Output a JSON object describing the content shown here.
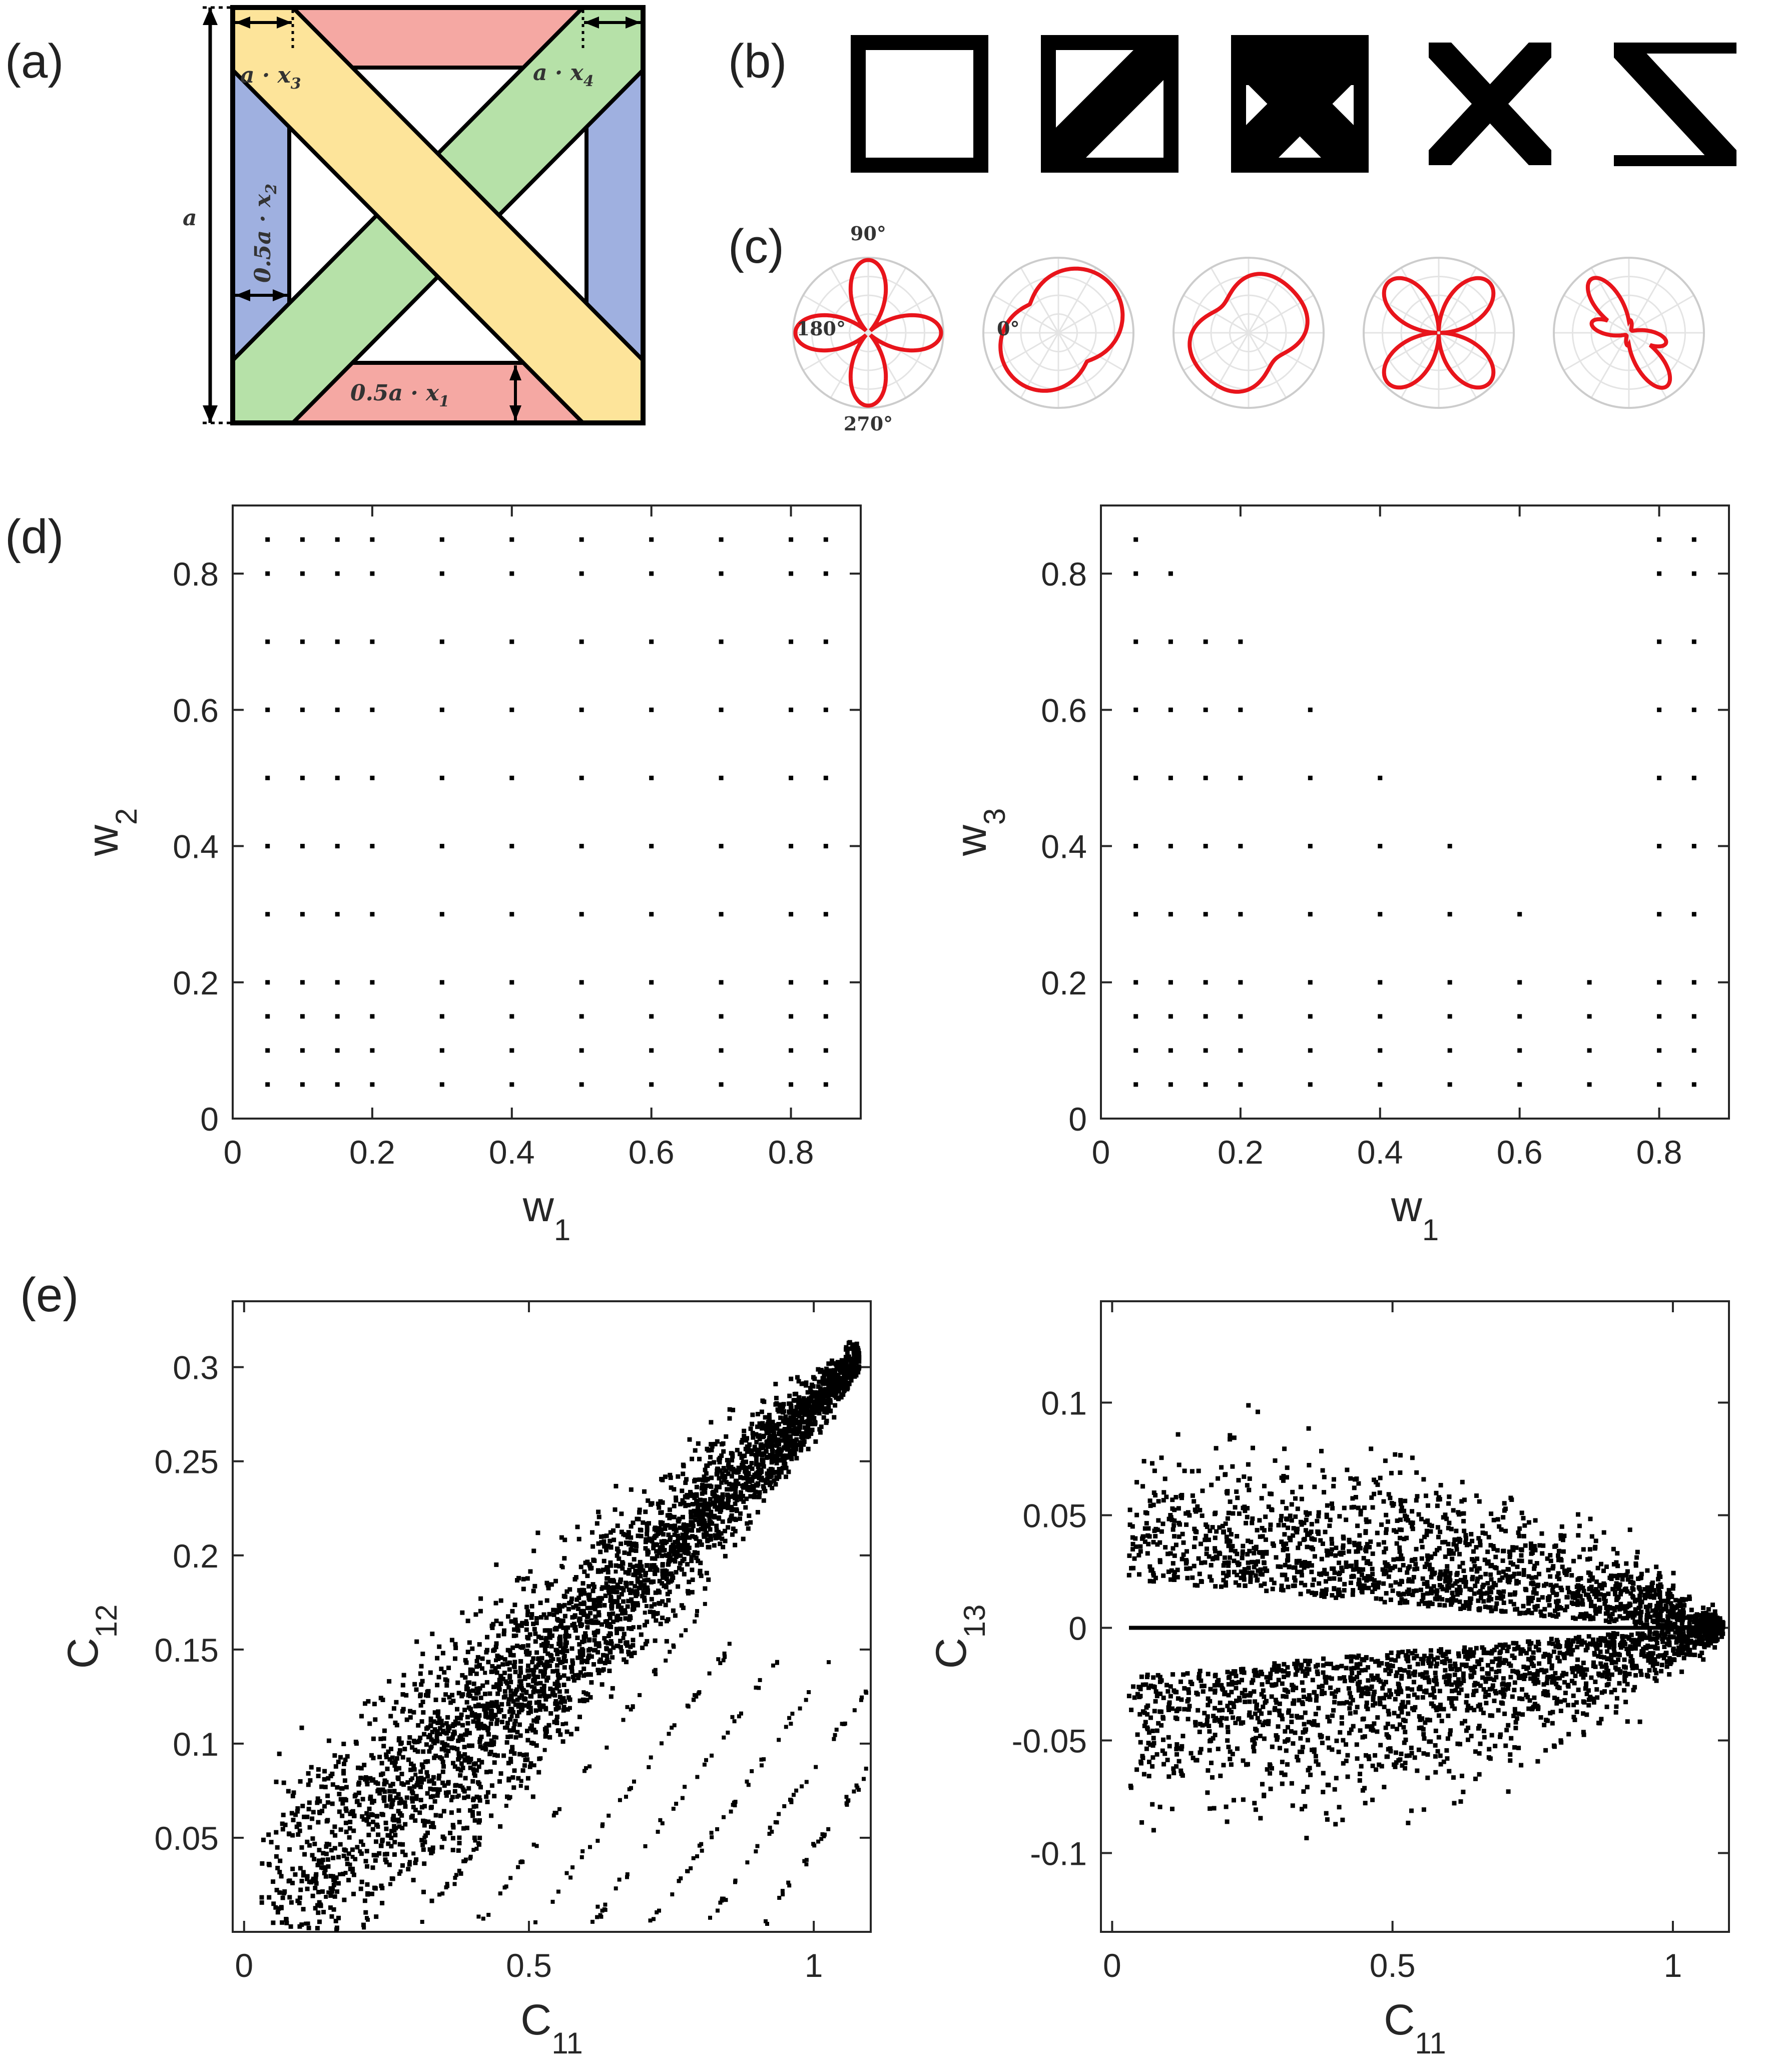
{
  "panel_labels": {
    "a": "(a)",
    "b": "(b)",
    "c": "(c)",
    "d": "(d)",
    "e": "(e)"
  },
  "cell": {
    "label_a": "a",
    "label_x1": "0.5a · x",
    "label_x2": "0.5a · x",
    "label_x3": "a · x",
    "label_x4": "a · x",
    "sub_x1": "1",
    "sub_x2": "2",
    "sub_x3": "3",
    "sub_x4": "4",
    "colors": {
      "red": "#f5a8a3",
      "blue": "#9fb0e0",
      "green": "#b6e1a8",
      "yellow": "#fde49a"
    }
  },
  "polar": {
    "angle_labels": {
      "deg90": "90°",
      "deg180": "180°",
      "deg0": "0°",
      "deg270": "270°"
    },
    "curve_color": "#e8141b"
  },
  "chart_data": [
    {
      "id": "d-left",
      "type": "scatter",
      "xlabel": "w",
      "xlabel_sub": "1",
      "ylabel": "w",
      "ylabel_sub": "2",
      "xlim": [
        0,
        0.9
      ],
      "ylim": [
        0,
        0.9
      ],
      "xticks": [
        "0",
        "0.2",
        "0.4",
        "0.6",
        "0.8"
      ],
      "yticks": [
        "0",
        "0.2",
        "0.4",
        "0.6",
        "0.8"
      ],
      "grid_values": [
        0,
        0.05,
        0.1,
        0.15,
        0.2,
        0.3,
        0.4,
        0.5,
        0.6,
        0.7,
        0.8,
        0.85,
        0.9
      ],
      "note": "full grid of points"
    },
    {
      "id": "d-right",
      "type": "scatter",
      "xlabel": "w",
      "xlabel_sub": "1",
      "ylabel": "w",
      "ylabel_sub": "3",
      "xlim": [
        0,
        0.9
      ],
      "ylim": [
        0,
        0.9
      ],
      "xticks": [
        "0",
        "0.2",
        "0.4",
        "0.6",
        "0.8"
      ],
      "yticks": [
        "0",
        "0.2",
        "0.4",
        "0.6",
        "0.8"
      ],
      "grid_values": [
        0,
        0.05,
        0.1,
        0.15,
        0.2,
        0.3,
        0.4,
        0.5,
        0.6,
        0.7,
        0.8,
        0.85,
        0.9
      ],
      "note": "points with w1 + w3 <= 0.9 plus w1 >= 0.8"
    },
    {
      "id": "e-left",
      "type": "scatter",
      "xlabel": "C",
      "xlabel_sub": "11",
      "ylabel": "C",
      "ylabel_sub": "12",
      "xlim": [
        -0.02,
        1.1
      ],
      "ylim": [
        0,
        0.335
      ],
      "xticks": [
        "0",
        "0.5",
        "1"
      ],
      "xtick_values": [
        0,
        0.5,
        1
      ],
      "yticks": [
        "0.05",
        "0.1",
        "0.15",
        "0.2",
        "0.25",
        "0.3"
      ],
      "ytick_values": [
        0.05,
        0.1,
        0.15,
        0.2,
        0.25,
        0.3
      ],
      "description": "dense cloud rising from (0,0) to (1.08,0.33) with fan of streaks"
    },
    {
      "id": "e-right",
      "type": "scatter",
      "xlabel": "C",
      "xlabel_sub": "11",
      "ylabel": "C",
      "ylabel_sub": "13",
      "xlim": [
        -0.02,
        1.1
      ],
      "ylim": [
        -0.135,
        0.145
      ],
      "xticks": [
        "0",
        "0.5",
        "1"
      ],
      "xtick_values": [
        0,
        0.5,
        1
      ],
      "yticks": [
        "-0.1",
        "-0.05",
        "0",
        "0.05",
        "0.1"
      ],
      "ytick_values": [
        -0.1,
        -0.05,
        0,
        0.05,
        0.1
      ],
      "description": "symmetric lens-shaped cloud about C13 = 0 with a horizontal line at 0"
    }
  ]
}
